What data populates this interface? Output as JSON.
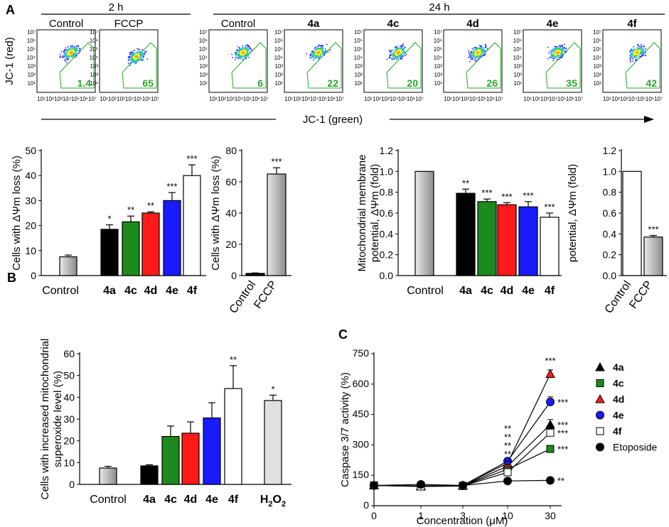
{
  "colors": {
    "black": "#000000",
    "green": "#1c8a1c",
    "red": "#ff1a1a",
    "blue": "#1a1aff",
    "white": "#ffffff",
    "gray": "#b0b0b0",
    "lightgray": "#e0e0e0",
    "pct_green": "#2aa52a",
    "asterisk_gray": "#999999"
  },
  "panel_labels": {
    "a": "A",
    "b": "B",
    "c": "C"
  },
  "flow": {
    "group_2h": "2 h",
    "group_24h": "24 h",
    "ylabel": "JC-1 (red)",
    "xlabel": "JC-1 (green)",
    "axis_ticks": [
      "10⁷",
      "10⁶",
      "10⁵",
      "10⁴",
      "10³",
      "10²",
      "10¹"
    ],
    "panels": [
      {
        "label": "Control",
        "bold": false,
        "percent": "1.4"
      },
      {
        "label": "FCCP",
        "bold": false,
        "percent": "65"
      },
      {
        "label": "Control",
        "bold": false,
        "percent": "6"
      },
      {
        "label": "4a",
        "bold": true,
        "percent": "22"
      },
      {
        "label": "4c",
        "bold": true,
        "percent": "20"
      },
      {
        "label": "4d",
        "bold": true,
        "percent": "26"
      },
      {
        "label": "4e",
        "bold": true,
        "percent": "35"
      },
      {
        "label": "4f",
        "bold": true,
        "percent": "42"
      }
    ]
  },
  "chart_data": [
    {
      "id": "a1",
      "type": "bar",
      "ylabel": "Cells with ΔΨm loss (%)",
      "ylim": [
        0,
        50
      ],
      "yticks": [
        0,
        10,
        20,
        30,
        40,
        50
      ],
      "bars": [
        {
          "name": "Control",
          "value": 7.5,
          "error": 0.7,
          "color": "gray",
          "sig": ""
        },
        {
          "name": "4a",
          "value": 18.5,
          "error": 1.8,
          "color": "black",
          "sig": "*"
        },
        {
          "name": "4c",
          "value": 21.5,
          "error": 2.3,
          "color": "green",
          "sig": "**"
        },
        {
          "name": "4d",
          "value": 25,
          "error": 0.5,
          "color": "red",
          "sig": "**"
        },
        {
          "name": "4e",
          "value": 30,
          "error": 3.2,
          "color": "blue",
          "sig": "***"
        },
        {
          "name": "4f",
          "value": 40,
          "error": 4.3,
          "color": "white",
          "sig": "***"
        }
      ],
      "labels": [
        {
          "text": "Control",
          "bold": false
        },
        {
          "text": "4a",
          "bold": true
        },
        {
          "text": "4c",
          "bold": true
        },
        {
          "text": "4d",
          "bold": true
        },
        {
          "text": "4e",
          "bold": true
        },
        {
          "text": "4f",
          "bold": true
        }
      ]
    },
    {
      "id": "a2",
      "type": "bar",
      "ylabel": "Cells with ΔΨm loss (%)",
      "ylim": [
        0,
        80
      ],
      "yticks": [
        0,
        20,
        40,
        60,
        80
      ],
      "bars": [
        {
          "name": "Control",
          "value": 1.4,
          "error": 0.3,
          "color": "black",
          "sig": ""
        },
        {
          "name": "FCCP",
          "value": 65,
          "error": 4,
          "color": "gray",
          "sig": "***"
        }
      ],
      "labels": [
        {
          "text": "Control",
          "bold": false
        },
        {
          "text": "FCCP",
          "bold": false
        }
      ]
    },
    {
      "id": "a3",
      "type": "bar",
      "ylabel_line1": "Mitochondrial membrane",
      "ylabel_line2": "potential, ΔΨm (fold)",
      "ylim": [
        0,
        1.2
      ],
      "yticks": [
        "0.0",
        "0.2",
        "0.4",
        "0.6",
        "0.8",
        "1.0",
        "1.2"
      ],
      "bars": [
        {
          "name": "Control",
          "value": 1.0,
          "error": 0,
          "color": "gray",
          "sig": ""
        },
        {
          "name": "4a",
          "value": 0.79,
          "error": 0.04,
          "color": "black",
          "sig": "**"
        },
        {
          "name": "4c",
          "value": 0.71,
          "error": 0.025,
          "color": "green",
          "sig": "***"
        },
        {
          "name": "4d",
          "value": 0.68,
          "error": 0.02,
          "color": "red",
          "sig": "***"
        },
        {
          "name": "4e",
          "value": 0.66,
          "error": 0.05,
          "color": "blue",
          "sig": "***"
        },
        {
          "name": "4f",
          "value": 0.56,
          "error": 0.04,
          "color": "white",
          "sig": "***"
        }
      ],
      "labels": [
        {
          "text": "Control",
          "bold": false
        },
        {
          "text": "4a",
          "bold": true
        },
        {
          "text": "4c",
          "bold": true
        },
        {
          "text": "4d",
          "bold": true
        },
        {
          "text": "4e",
          "bold": true
        },
        {
          "text": "4f",
          "bold": true
        }
      ]
    },
    {
      "id": "a4",
      "type": "bar",
      "ylabel": "potential, ΔΨm (fold)",
      "ylim": [
        0,
        1.2
      ],
      "yticks": [
        "0.0",
        "0.2",
        "0.4",
        "0.6",
        "0.8",
        "1.0",
        "1.2"
      ],
      "bars": [
        {
          "name": "Control",
          "value": 1.0,
          "error": 0,
          "color": "white",
          "sig": ""
        },
        {
          "name": "FCCP",
          "value": 0.37,
          "error": 0.015,
          "color": "gray",
          "sig": "***"
        }
      ],
      "labels": [
        {
          "text": "Control",
          "bold": false
        },
        {
          "text": "FCCP",
          "bold": false
        }
      ]
    },
    {
      "id": "b",
      "type": "bar",
      "ylabel_line1": "Cells with increased mitochondrial",
      "ylabel_line2": "superoxide level (%)",
      "ylim": [
        0,
        60
      ],
      "yticks": [
        0,
        10,
        20,
        30,
        40,
        50,
        60
      ],
      "bars": [
        {
          "name": "Control",
          "value": 7.5,
          "error": 0.8,
          "color": "gray",
          "sig": ""
        },
        {
          "name": "4a",
          "value": 8.5,
          "error": 0.5,
          "color": "black",
          "sig": ""
        },
        {
          "name": "4c",
          "value": 22,
          "error": 4.8,
          "color": "green",
          "sig": ""
        },
        {
          "name": "4d",
          "value": 23.5,
          "error": 5.2,
          "color": "red",
          "sig": ""
        },
        {
          "name": "4e",
          "value": 30.5,
          "error": 7,
          "color": "blue",
          "sig": ""
        },
        {
          "name": "4f",
          "value": 44,
          "error": 10.5,
          "color": "white",
          "sig": "**"
        },
        {
          "name": "H2O2",
          "value": 38.5,
          "error": 2.5,
          "color": "lightgray",
          "sig": "*"
        }
      ],
      "labels": [
        {
          "text": "Control",
          "bold": false
        },
        {
          "text": "4a",
          "bold": true
        },
        {
          "text": "4c",
          "bold": true
        },
        {
          "text": "4d",
          "bold": true
        },
        {
          "text": "4e",
          "bold": true
        },
        {
          "text": "4f",
          "bold": true
        },
        {
          "text": "H",
          "sub": "2",
          "text2": "O",
          "sub2": "2",
          "bold": true
        }
      ]
    },
    {
      "id": "c",
      "type": "line",
      "xlabel": "Concentration (μM)",
      "ylabel": "Caspase 3/7 activity (%)",
      "x": [
        0,
        1,
        3,
        10,
        30
      ],
      "xticks": [
        "0",
        "1",
        "3",
        "10",
        "30"
      ],
      "ylim": [
        0,
        750
      ],
      "yticks": [
        0,
        150,
        300,
        450,
        600,
        750
      ],
      "series": [
        {
          "name": "4a",
          "marker": "triangle",
          "color": "black",
          "values": [
            100,
            95,
            98,
            195,
            400
          ],
          "error_last": 25,
          "sig_last": "***",
          "sig_color": "black"
        },
        {
          "name": "4c",
          "marker": "square",
          "color": "green",
          "values": [
            100,
            96,
            98,
            180,
            280
          ],
          "error_last": 15,
          "sig_last": "***",
          "sig_color": "green"
        },
        {
          "name": "4d",
          "marker": "triangle",
          "color": "red",
          "values": [
            100,
            97,
            100,
            210,
            650
          ],
          "error_last": 20,
          "sig_last": "***",
          "sig_color": "red"
        },
        {
          "name": "4e",
          "marker": "circle",
          "color": "blue",
          "values": [
            100,
            98,
            100,
            220,
            512
          ],
          "error_last": 25,
          "sig_last": "***",
          "sig_color": "blue"
        },
        {
          "name": "4f",
          "marker": "square",
          "color": "white",
          "values": [
            100,
            95,
            97,
            165,
            360
          ],
          "error_last": 20,
          "sig_last": "***",
          "sig_color": "asterisk_gray"
        },
        {
          "name": "Etoposide",
          "marker": "circle",
          "color": "black",
          "values": [
            100,
            105,
            100,
            122,
            125
          ],
          "error_last": 5,
          "sig_last": "**",
          "sig_color": "black"
        }
      ],
      "sig_at_10": [
        {
          "text": "**",
          "color": "red"
        },
        {
          "text": "**",
          "color": "blue"
        },
        {
          "text": "**",
          "color": "black"
        },
        {
          "text": "**",
          "color": "asterisk_gray"
        },
        {
          "text": "**",
          "color": "green"
        }
      ],
      "legend_position": "right"
    }
  ]
}
